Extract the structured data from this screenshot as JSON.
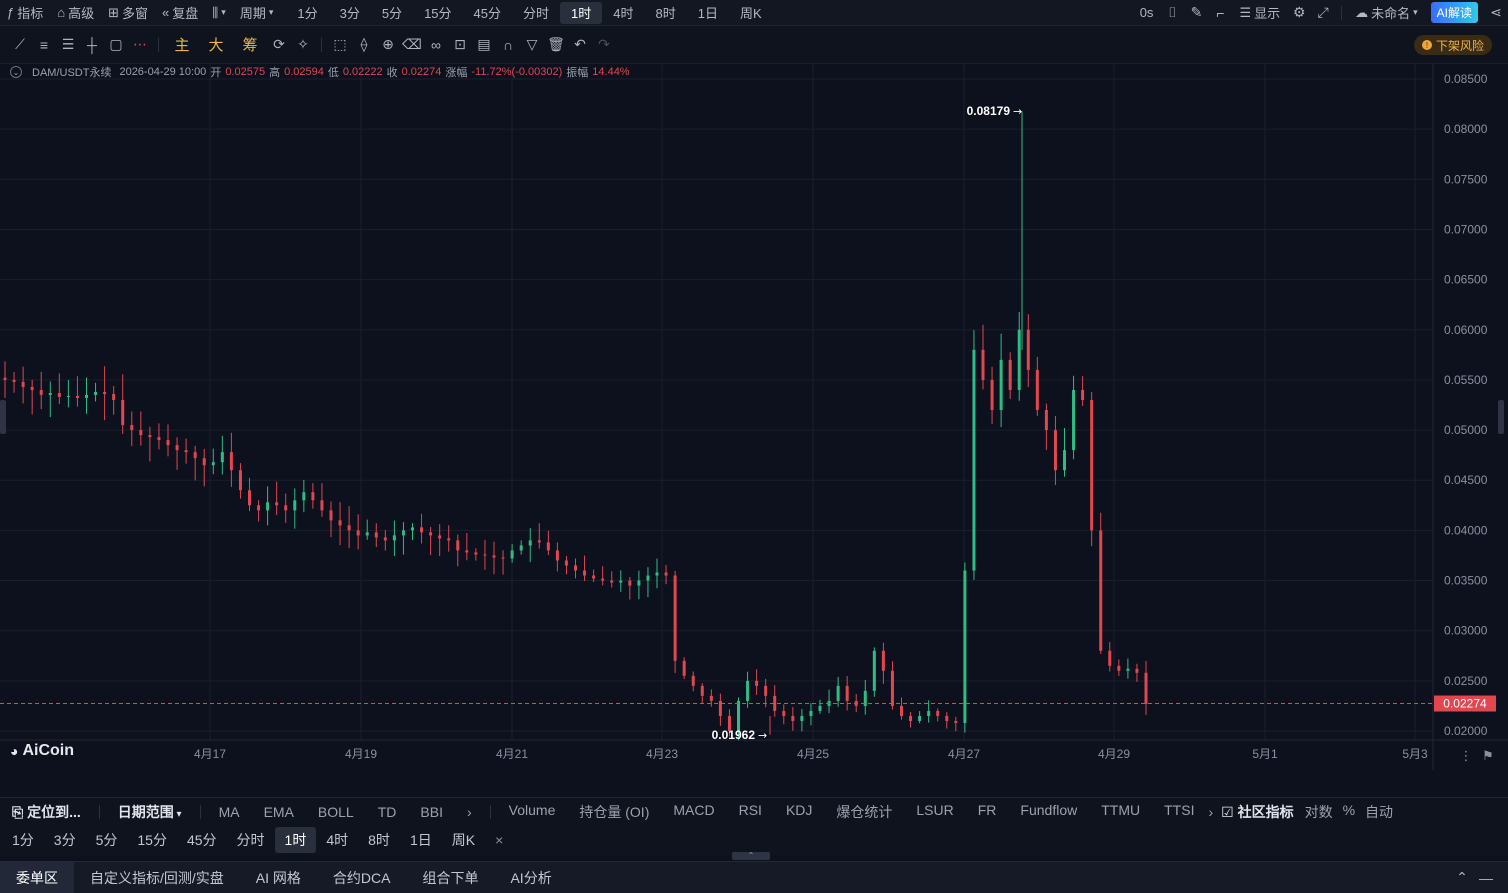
{
  "topbar": {
    "left_items": [
      {
        "label": "指标",
        "icon": "indicator-icon"
      },
      {
        "label": "高级",
        "icon": "advanced-icon"
      },
      {
        "label": "多窗",
        "icon": "multiwindow-icon"
      },
      {
        "label": "复盘",
        "icon": "replay-icon"
      },
      {
        "label": "",
        "icon": "chart-type-icon"
      }
    ],
    "period_label": "周期",
    "intervals": [
      "1分",
      "3分",
      "5分",
      "15分",
      "45分",
      "分时",
      "1时",
      "4时",
      "8时",
      "1日",
      "周K"
    ],
    "active_interval": "1时",
    "countdown": "0s",
    "display_label": "显示",
    "layout_name": "未命名",
    "ai_label": "AI解读"
  },
  "toolbar": {
    "gold_labels": [
      "主",
      "大",
      "筹"
    ],
    "risk_label": "下架风险"
  },
  "ohlc": {
    "symbol": "DAM/USDT永续",
    "datetime": "2026-04-29 10:00",
    "open_label": "开",
    "open": "0.02575",
    "high_label": "高",
    "high": "0.02594",
    "low_label": "低",
    "low": "0.02222",
    "close_label": "收",
    "close": "0.02274",
    "change_label": "涨幅",
    "change": "-11.72%(-0.00302)",
    "amp_label": "振幅",
    "amp": "14.44%"
  },
  "chart_data": {
    "type": "candlestick",
    "price_axis": [
      "0.08500",
      "0.08000",
      "0.07500",
      "0.07000",
      "0.06500",
      "0.06000",
      "0.05500",
      "0.05000",
      "0.04500",
      "0.04000",
      "0.03500",
      "0.03000",
      "0.02500",
      "0.02000"
    ],
    "date_axis": [
      "4月17",
      "4月19",
      "4月21",
      "4月23",
      "4月25",
      "4月27",
      "4月29",
      "5月1",
      "5月3"
    ],
    "high_marker": "0.08179",
    "low_marker": "0.01962",
    "last_price": "0.02274",
    "colors": {
      "up": "#2ebd85",
      "down": "#e0474f",
      "grid": "#1a1f2c"
    },
    "series_approx_close": [
      0.055,
      0.0548,
      0.0543,
      0.054,
      0.0535,
      0.0537,
      0.0533,
      0.0534,
      0.0532,
      0.0535,
      0.0538,
      0.0536,
      0.053,
      0.0505,
      0.05,
      0.0495,
      0.0493,
      0.049,
      0.0485,
      0.048,
      0.0478,
      0.0472,
      0.0465,
      0.0468,
      0.0478,
      0.046,
      0.044,
      0.0425,
      0.042,
      0.0428,
      0.0425,
      0.042,
      0.043,
      0.0438,
      0.043,
      0.042,
      0.041,
      0.0405,
      0.04,
      0.0395,
      0.0398,
      0.0393,
      0.039,
      0.0395,
      0.04,
      0.0403,
      0.0398,
      0.0395,
      0.0392,
      0.039,
      0.038,
      0.0378,
      0.0376,
      0.0375,
      0.0373,
      0.0372,
      0.038,
      0.0385,
      0.039,
      0.0388,
      0.038,
      0.037,
      0.0365,
      0.036,
      0.0355,
      0.0352,
      0.035,
      0.0348,
      0.035,
      0.0345,
      0.035,
      0.0355,
      0.0358,
      0.0355,
      0.027,
      0.0255,
      0.0245,
      0.0235,
      0.023,
      0.0215,
      0.02,
      0.023,
      0.025,
      0.0245,
      0.0235,
      0.022,
      0.0215,
      0.021,
      0.0215,
      0.022,
      0.0225,
      0.023,
      0.0245,
      0.023,
      0.0225,
      0.024,
      0.028,
      0.026,
      0.0225,
      0.0215,
      0.021,
      0.0215,
      0.022,
      0.0215,
      0.021,
      0.0208,
      0.036,
      0.058,
      0.055,
      0.052,
      0.057,
      0.054,
      0.06,
      0.056,
      0.052,
      0.05,
      0.046,
      0.048,
      0.054,
      0.053,
      0.04,
      0.028,
      0.0265,
      0.026,
      0.0262,
      0.0258,
      0.0227
    ]
  },
  "logo": {
    "text": "AiCoin"
  },
  "indicators": {
    "locate_label": "定位到...",
    "range_label": "日期范围",
    "main": [
      "MA",
      "EMA",
      "BOLL",
      "TD",
      "BBI"
    ],
    "sub": [
      "Volume",
      "持仓量 (OI)",
      "MACD",
      "RSI",
      "KDJ",
      "爆仓统计",
      "LSUR",
      "FR",
      "Fundflow",
      "TTMU",
      "TTSI"
    ],
    "community_label": "社区指标",
    "right": [
      "对数",
      "%",
      "自动"
    ]
  },
  "timebar": {
    "intervals": [
      "1分",
      "3分",
      "5分",
      "15分",
      "45分",
      "分时",
      "1时",
      "4时",
      "8时",
      "1日",
      "周K"
    ],
    "active": "1时",
    "close_glyph": "×"
  },
  "bottom_tabs": [
    "委单区",
    "自定义指标/回测/实盘",
    "AI 网格",
    "合约DCA",
    "组合下单",
    "AI分析"
  ],
  "bottom_active": "委单区"
}
